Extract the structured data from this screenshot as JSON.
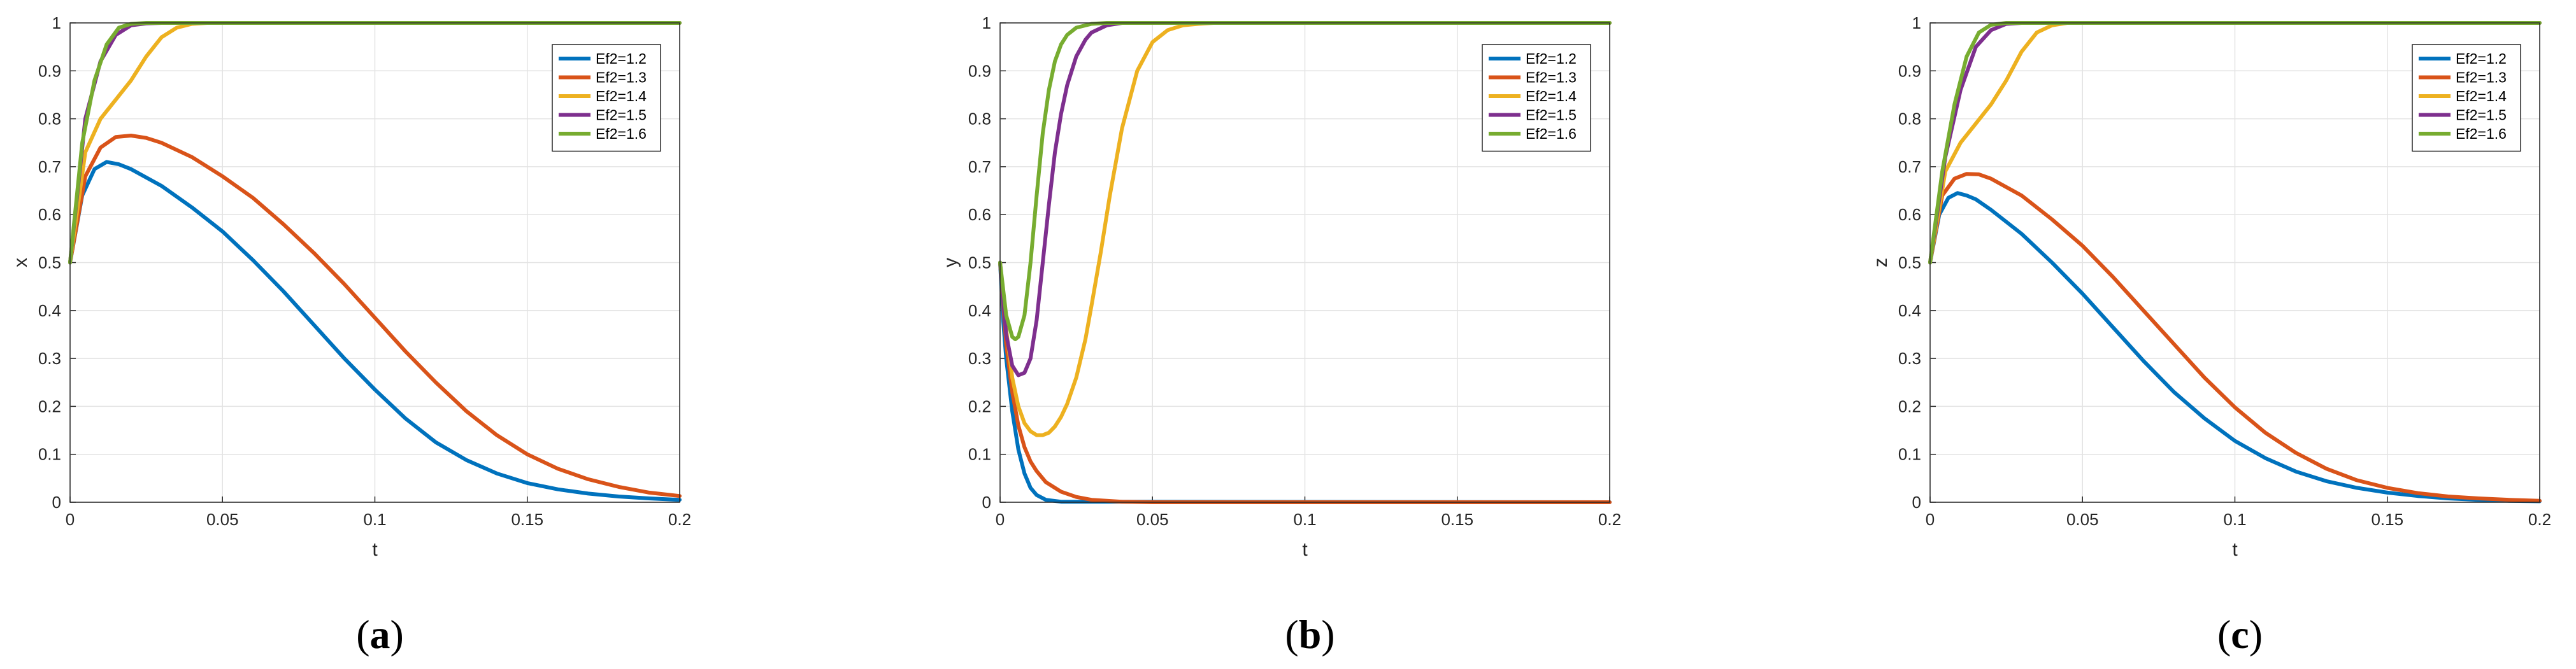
{
  "chart_data": [
    {
      "type": "line",
      "panel_label": {
        "open": "(",
        "letter": "a",
        "close": ")"
      },
      "xlabel": "t",
      "ylabel": "x",
      "xlim": [
        0,
        0.2
      ],
      "ylim": [
        0,
        1
      ],
      "xticks": [
        "0",
        "0.05",
        "0.1",
        "0.15",
        "0.2"
      ],
      "yticks": [
        "0",
        "0.1",
        "0.2",
        "0.3",
        "0.4",
        "0.5",
        "0.6",
        "0.7",
        "0.8",
        "0.9",
        "1"
      ],
      "grid": true,
      "legend_position": "top-right",
      "series": [
        {
          "name": "Ef2=1.2",
          "color": "#0072BD",
          "x": [
            0,
            0.004,
            0.008,
            0.012,
            0.016,
            0.02,
            0.03,
            0.04,
            0.05,
            0.06,
            0.07,
            0.08,
            0.09,
            0.1,
            0.11,
            0.12,
            0.13,
            0.14,
            0.15,
            0.16,
            0.17,
            0.18,
            0.19,
            0.2
          ],
          "y": [
            0.5,
            0.64,
            0.695,
            0.71,
            0.705,
            0.695,
            0.66,
            0.615,
            0.565,
            0.505,
            0.44,
            0.37,
            0.3,
            0.235,
            0.175,
            0.125,
            0.088,
            0.06,
            0.04,
            0.027,
            0.018,
            0.012,
            0.008,
            0.005
          ]
        },
        {
          "name": "Ef2=1.3",
          "color": "#D95319",
          "x": [
            0,
            0.005,
            0.01,
            0.015,
            0.02,
            0.025,
            0.03,
            0.04,
            0.05,
            0.06,
            0.07,
            0.08,
            0.09,
            0.1,
            0.11,
            0.12,
            0.13,
            0.14,
            0.15,
            0.16,
            0.17,
            0.18,
            0.19,
            0.2
          ],
          "y": [
            0.5,
            0.68,
            0.74,
            0.762,
            0.765,
            0.76,
            0.75,
            0.72,
            0.68,
            0.635,
            0.58,
            0.52,
            0.455,
            0.385,
            0.315,
            0.25,
            0.19,
            0.14,
            0.1,
            0.07,
            0.048,
            0.032,
            0.02,
            0.013
          ]
        },
        {
          "name": "Ef2=1.4",
          "color": "#EDB120",
          "x": [
            0,
            0.005,
            0.01,
            0.015,
            0.02,
            0.025,
            0.03,
            0.035,
            0.04,
            0.045,
            0.05,
            0.2
          ],
          "y": [
            0.5,
            0.73,
            0.8,
            0.84,
            0.88,
            0.93,
            0.97,
            0.99,
            0.998,
            1.0,
            1.0,
            1.0
          ]
        },
        {
          "name": "Ef2=1.5",
          "color": "#7E2F8E",
          "x": [
            0,
            0.005,
            0.01,
            0.015,
            0.02,
            0.025,
            0.03,
            0.2
          ],
          "y": [
            0.5,
            0.8,
            0.92,
            0.975,
            0.995,
            0.999,
            1.0,
            1.0
          ]
        },
        {
          "name": "Ef2=1.6",
          "color": "#77AC30",
          "x": [
            0,
            0.004,
            0.008,
            0.012,
            0.016,
            0.02,
            0.025,
            0.2
          ],
          "y": [
            0.5,
            0.75,
            0.88,
            0.955,
            0.99,
            0.998,
            1.0,
            1.0
          ]
        }
      ]
    },
    {
      "type": "line",
      "panel_label": {
        "open": "(",
        "letter": "b",
        "close": ")"
      },
      "xlabel": "t",
      "ylabel": "y",
      "xlim": [
        0,
        0.2
      ],
      "ylim": [
        0,
        1
      ],
      "xticks": [
        "0",
        "0.05",
        "0.1",
        "0.15",
        "0.2"
      ],
      "yticks": [
        "0",
        "0.1",
        "0.2",
        "0.3",
        "0.4",
        "0.5",
        "0.6",
        "0.7",
        "0.8",
        "0.9",
        "1"
      ],
      "grid": true,
      "legend_position": "top-right",
      "series": [
        {
          "name": "Ef2=1.2",
          "color": "#0072BD",
          "x": [
            0,
            0.001,
            0.002,
            0.004,
            0.006,
            0.008,
            0.01,
            0.012,
            0.015,
            0.02,
            0.2
          ],
          "y": [
            0.5,
            0.38,
            0.3,
            0.19,
            0.11,
            0.06,
            0.03,
            0.015,
            0.005,
            0.001,
            0
          ]
        },
        {
          "name": "Ef2=1.3",
          "color": "#D95319",
          "x": [
            0,
            0.002,
            0.004,
            0.006,
            0.008,
            0.01,
            0.012,
            0.015,
            0.02,
            0.025,
            0.03,
            0.04,
            0.05,
            0.2
          ],
          "y": [
            0.5,
            0.33,
            0.23,
            0.16,
            0.115,
            0.085,
            0.065,
            0.042,
            0.022,
            0.011,
            0.005,
            0.001,
            0,
            0
          ]
        },
        {
          "name": "Ef2=1.4",
          "color": "#EDB120",
          "x": [
            0,
            0.002,
            0.004,
            0.006,
            0.008,
            0.01,
            0.012,
            0.014,
            0.016,
            0.018,
            0.02,
            0.022,
            0.025,
            0.028,
            0.03,
            0.033,
            0.036,
            0.04,
            0.045,
            0.05,
            0.055,
            0.06,
            0.065,
            0.07,
            0.2
          ],
          "y": [
            0.5,
            0.36,
            0.26,
            0.2,
            0.165,
            0.148,
            0.14,
            0.14,
            0.145,
            0.158,
            0.178,
            0.205,
            0.26,
            0.34,
            0.41,
            0.52,
            0.64,
            0.78,
            0.9,
            0.96,
            0.985,
            0.995,
            0.998,
            1.0,
            1.0
          ]
        },
        {
          "name": "Ef2=1.5",
          "color": "#7E2F8E",
          "x": [
            0,
            0.002,
            0.004,
            0.006,
            0.008,
            0.01,
            0.012,
            0.014,
            0.016,
            0.018,
            0.02,
            0.022,
            0.025,
            0.028,
            0.03,
            0.035,
            0.04,
            0.2
          ],
          "y": [
            0.5,
            0.35,
            0.285,
            0.265,
            0.27,
            0.3,
            0.38,
            0.5,
            0.62,
            0.73,
            0.81,
            0.87,
            0.93,
            0.965,
            0.98,
            0.995,
            1.0,
            1.0
          ]
        },
        {
          "name": "Ef2=1.6",
          "color": "#77AC30",
          "x": [
            0,
            0.002,
            0.004,
            0.005,
            0.006,
            0.008,
            0.01,
            0.012,
            0.014,
            0.016,
            0.018,
            0.02,
            0.022,
            0.025,
            0.03,
            0.035,
            0.2
          ],
          "y": [
            0.5,
            0.39,
            0.345,
            0.34,
            0.345,
            0.39,
            0.5,
            0.64,
            0.77,
            0.86,
            0.92,
            0.955,
            0.975,
            0.99,
            0.998,
            1.0,
            1.0
          ]
        }
      ]
    },
    {
      "type": "line",
      "panel_label": {
        "open": "(",
        "letter": "c",
        "close": ")"
      },
      "xlabel": "t",
      "ylabel": "z",
      "xlim": [
        0,
        0.2
      ],
      "ylim": [
        0,
        1
      ],
      "xticks": [
        "0",
        "0.05",
        "0.1",
        "0.15",
        "0.2"
      ],
      "yticks": [
        "0",
        "0.1",
        "0.2",
        "0.3",
        "0.4",
        "0.5",
        "0.6",
        "0.7",
        "0.8",
        "0.9",
        "1"
      ],
      "grid": true,
      "legend_position": "top-right",
      "series": [
        {
          "name": "Ef2=1.2",
          "color": "#0072BD",
          "x": [
            0,
            0.003,
            0.006,
            0.009,
            0.012,
            0.015,
            0.02,
            0.03,
            0.04,
            0.05,
            0.06,
            0.07,
            0.08,
            0.09,
            0.1,
            0.11,
            0.12,
            0.13,
            0.14,
            0.15,
            0.16,
            0.17,
            0.18,
            0.19,
            0.2
          ],
          "y": [
            0.5,
            0.6,
            0.635,
            0.645,
            0.64,
            0.632,
            0.61,
            0.56,
            0.5,
            0.435,
            0.365,
            0.295,
            0.23,
            0.175,
            0.128,
            0.092,
            0.064,
            0.044,
            0.03,
            0.02,
            0.013,
            0.008,
            0.005,
            0.003,
            0.002
          ]
        },
        {
          "name": "Ef2=1.3",
          "color": "#D95319",
          "x": [
            0,
            0.004,
            0.008,
            0.012,
            0.016,
            0.02,
            0.03,
            0.04,
            0.05,
            0.06,
            0.07,
            0.08,
            0.09,
            0.1,
            0.11,
            0.12,
            0.13,
            0.14,
            0.15,
            0.16,
            0.17,
            0.18,
            0.19,
            0.2
          ],
          "y": [
            0.5,
            0.64,
            0.675,
            0.685,
            0.684,
            0.675,
            0.64,
            0.59,
            0.535,
            0.47,
            0.4,
            0.33,
            0.26,
            0.198,
            0.145,
            0.103,
            0.07,
            0.046,
            0.03,
            0.019,
            0.012,
            0.008,
            0.005,
            0.003
          ]
        },
        {
          "name": "Ef2=1.4",
          "color": "#EDB120",
          "x": [
            0,
            0.005,
            0.01,
            0.015,
            0.02,
            0.025,
            0.03,
            0.035,
            0.04,
            0.045,
            0.05,
            0.2
          ],
          "y": [
            0.5,
            0.69,
            0.75,
            0.79,
            0.83,
            0.88,
            0.94,
            0.98,
            0.995,
            1.0,
            1.0,
            1.0
          ]
        },
        {
          "name": "Ef2=1.5",
          "color": "#7E2F8E",
          "x": [
            0,
            0.005,
            0.01,
            0.015,
            0.02,
            0.025,
            0.03,
            0.2
          ],
          "y": [
            0.5,
            0.72,
            0.86,
            0.95,
            0.985,
            0.998,
            1.0,
            1.0
          ]
        },
        {
          "name": "Ef2=1.6",
          "color": "#77AC30",
          "x": [
            0,
            0.004,
            0.008,
            0.012,
            0.016,
            0.02,
            0.025,
            0.2
          ],
          "y": [
            0.5,
            0.69,
            0.83,
            0.93,
            0.98,
            0.996,
            1.0,
            1.0
          ]
        }
      ]
    }
  ]
}
